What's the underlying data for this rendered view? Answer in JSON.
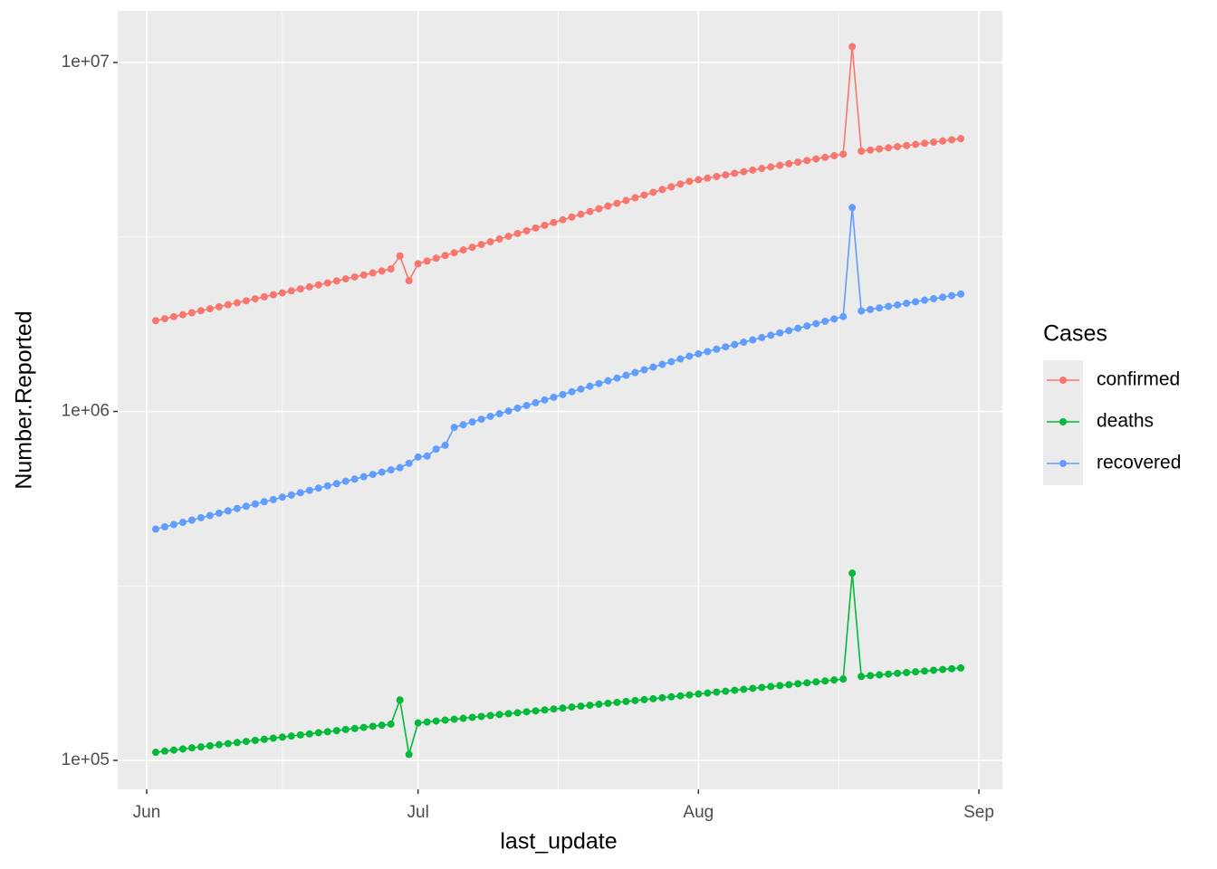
{
  "chart_data": {
    "type": "line",
    "x": [
      1,
      2,
      3,
      4,
      5,
      6,
      7,
      8,
      9,
      10,
      11,
      12,
      13,
      14,
      15,
      16,
      17,
      18,
      19,
      20,
      21,
      22,
      23,
      24,
      25,
      26,
      27,
      28,
      29,
      30,
      31,
      32,
      33,
      34,
      35,
      36,
      37,
      38,
      39,
      40,
      41,
      42,
      43,
      44,
      45,
      46,
      47,
      48,
      49,
      50,
      51,
      52,
      53,
      54,
      55,
      56,
      57,
      58,
      59,
      60,
      61,
      62,
      63,
      64,
      65,
      66,
      67,
      68,
      69,
      70,
      71,
      72,
      73,
      74,
      75,
      76,
      77,
      78,
      79,
      80,
      81,
      82,
      83,
      84,
      85,
      86,
      87,
      88,
      89,
      90
    ],
    "series": [
      {
        "name": "confirmed",
        "color": "#F8766D",
        "values": [
          1820000,
          1844000,
          1869000,
          1893000,
          1918000,
          1944000,
          1969000,
          1995000,
          2022000,
          2048000,
          2075000,
          2103000,
          2131000,
          2159000,
          2187000,
          2216000,
          2245000,
          2275000,
          2305000,
          2335000,
          2366000,
          2398000,
          2429000,
          2461000,
          2494000,
          2527000,
          2560000,
          2790000,
          2370000,
          2650000,
          2698000,
          2748000,
          2798000,
          2849000,
          2902000,
          2955000,
          3009000,
          3064000,
          3120000,
          3177000,
          3235000,
          3294000,
          3355000,
          3416000,
          3479000,
          3542000,
          3607000,
          3673000,
          3740000,
          3809000,
          3878000,
          3949000,
          4022000,
          4095000,
          4170000,
          4246000,
          4324000,
          4403000,
          4484000,
          4566000,
          4614000,
          4663000,
          4713000,
          4763000,
          4813000,
          4864000,
          4916000,
          4968000,
          5020000,
          5074000,
          5127000,
          5182000,
          5237000,
          5292000,
          5348000,
          5405000,
          5460000,
          11100000,
          5570000,
          5612000,
          5654000,
          5696000,
          5739000,
          5782000,
          5825000,
          5869000,
          5913000,
          5957000,
          6002000,
          6050000
        ]
      },
      {
        "name": "deaths",
        "color": "#00BA38",
        "values": [
          105500,
          106300,
          107000,
          107800,
          108600,
          109300,
          110100,
          110900,
          111700,
          112500,
          113300,
          114100,
          114900,
          115800,
          116600,
          117400,
          118300,
          119100,
          120000,
          120800,
          121700,
          122600,
          123400,
          124300,
          125200,
          126100,
          127000,
          149000,
          104000,
          128000,
          128800,
          129600,
          130400,
          131200,
          132000,
          132800,
          133600,
          134400,
          135300,
          136100,
          136900,
          137800,
          138600,
          139500,
          140400,
          141200,
          142100,
          143000,
          143900,
          144800,
          145700,
          146600,
          147500,
          148400,
          149300,
          150200,
          151200,
          152100,
          153100,
          154000,
          155000,
          155900,
          156900,
          157800,
          158800,
          159800,
          160800,
          161800,
          162800,
          163800,
          164800,
          165800,
          166800,
          167900,
          168900,
          170000,
          171000,
          344000,
          174000,
          174900,
          175800,
          176700,
          177600,
          178500,
          179400,
          180300,
          181200,
          182200,
          183100,
          184000
        ]
      },
      {
        "name": "recovered",
        "color": "#619CFF",
        "values": [
          460000,
          467000,
          474000,
          481000,
          488000,
          496000,
          503000,
          511000,
          519000,
          527000,
          535000,
          543000,
          551000,
          559000,
          568000,
          576000,
          585000,
          594000,
          603000,
          612000,
          621000,
          631000,
          640000,
          650000,
          660000,
          670000,
          680000,
          690000,
          710000,
          740000,
          745000,
          780000,
          800000,
          900000,
          916000,
          933000,
          950000,
          968000,
          985000,
          1003000,
          1022000,
          1040000,
          1059000,
          1079000,
          1098000,
          1118000,
          1139000,
          1159000,
          1181000,
          1202000,
          1224000,
          1246000,
          1269000,
          1292000,
          1316000,
          1340000,
          1364000,
          1389000,
          1414000,
          1440000,
          1462000,
          1485000,
          1508000,
          1531000,
          1555000,
          1579000,
          1603000,
          1628000,
          1653000,
          1679000,
          1705000,
          1731000,
          1758000,
          1785000,
          1813000,
          1841000,
          1870000,
          3840000,
          1940000,
          1960000,
          1980000,
          2000000,
          2020000,
          2041000,
          2062000,
          2083000,
          2104000,
          2125000,
          2147000,
          2170000
        ]
      }
    ],
    "xlim": [
      -3.2,
      94.6
    ],
    "xticks": [
      {
        "value": 0,
        "label": "Jun"
      },
      {
        "value": 30,
        "label": "Jul"
      },
      {
        "value": 61,
        "label": "Aug"
      },
      {
        "value": 92,
        "label": "Sep"
      }
    ],
    "xminorticks": [
      15,
      45.5,
      76.5
    ],
    "ylim": [
      82600,
      14060000
    ],
    "log_y": true,
    "yticks": [
      {
        "value": 100000,
        "label": "1e+05"
      },
      {
        "value": 1000000,
        "label": "1e+06"
      },
      {
        "value": 10000000,
        "label": "1e+07"
      }
    ],
    "yminorticks": [
      316228,
      3162278
    ],
    "grid": true,
    "x_label": "last_update",
    "y_label": "Number.Reported",
    "legend_title": "Cases",
    "legend_position": "right"
  }
}
